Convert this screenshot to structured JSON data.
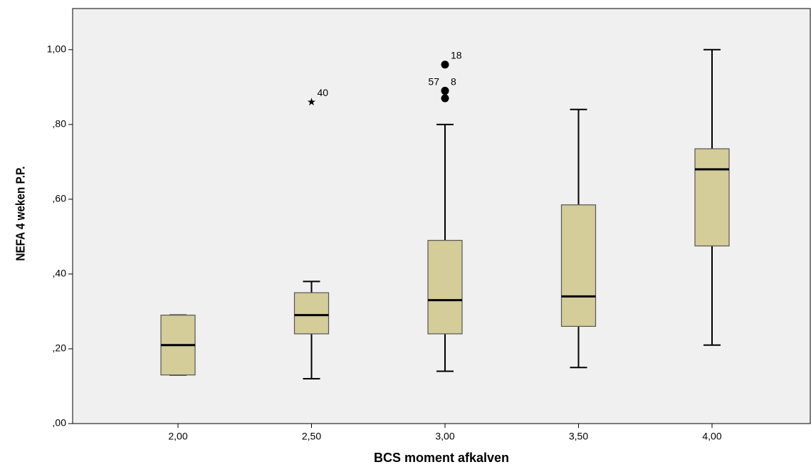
{
  "chart_data": {
    "type": "box",
    "x_label": "BCS moment afkalven",
    "y_label": "NEFA 4 weken P.P.",
    "categories": [
      "2,00",
      "2,50",
      "3,00",
      "3,50",
      "4,00"
    ],
    "color": "#d4cc99",
    "ylim": [
      0,
      1.11
    ],
    "yticks": [
      {
        "value": 0,
        "label": ",00"
      },
      {
        "value": 0.2,
        "label": ",20"
      },
      {
        "value": 0.4,
        "label": ",40"
      },
      {
        "value": 0.6,
        "label": ",60"
      },
      {
        "value": 0.8,
        "label": ",80"
      },
      {
        "value": 1.0,
        "label": "1,00"
      }
    ],
    "boxes": [
      {
        "whislo": 0.13,
        "q1": 0.13,
        "med": 0.21,
        "q3": 0.29,
        "whishi": 0.29,
        "outliers": []
      },
      {
        "whislo": 0.12,
        "q1": 0.24,
        "med": 0.29,
        "q3": 0.35,
        "whishi": 0.38,
        "outliers": [
          {
            "value": 0.86,
            "label": "40",
            "marker": "star"
          }
        ]
      },
      {
        "whislo": 0.14,
        "q1": 0.24,
        "med": 0.33,
        "q3": 0.49,
        "whishi": 0.8,
        "outliers": [
          {
            "value": 0.96,
            "label": "18",
            "marker": "circle"
          },
          {
            "value": 0.89,
            "label": "57",
            "marker": "circle"
          },
          {
            "value": 0.89,
            "label": "8",
            "marker": "circle"
          },
          {
            "value": 0.87,
            "marker": "circle"
          }
        ]
      },
      {
        "whislo": 0.15,
        "q1": 0.26,
        "med": 0.34,
        "q3": 0.585,
        "whishi": 0.84,
        "outliers": []
      },
      {
        "whislo": 0.21,
        "q1": 0.475,
        "med": 0.68,
        "q3": 0.735,
        "whishi": 1.0,
        "outliers": []
      }
    ]
  }
}
